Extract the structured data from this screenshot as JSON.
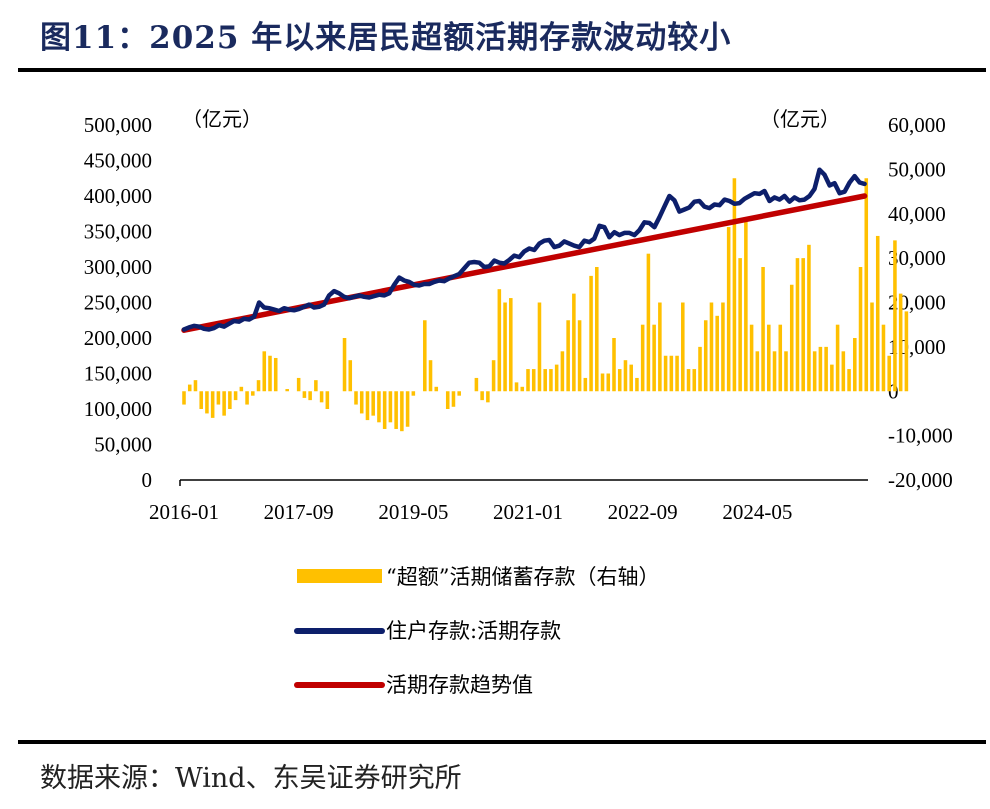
{
  "title": "图11：2025 年以来居民超额活期存款波动较小",
  "source": "数据来源：Wind、东吴证券研究所",
  "chart_data": {
    "type": "bar+line",
    "left_axis": {
      "unit": "（亿元）",
      "range": [
        0,
        500000
      ],
      "ticks": [
        "0",
        "50,000",
        "100,000",
        "150,000",
        "200,000",
        "250,000",
        "300,000",
        "350,000",
        "400,000",
        "450,000",
        "500,000"
      ]
    },
    "right_axis": {
      "unit": "（亿元）",
      "range": [
        -20000,
        60000
      ],
      "ticks": [
        "-20,000",
        "-10,000",
        "0",
        "10,000",
        "20,000",
        "30,000",
        "40,000",
        "50,000",
        "60,000"
      ]
    },
    "x_tick_labels": [
      "2016-01",
      "2017-09",
      "2019-05",
      "2021-01",
      "2022-09",
      "2024-05"
    ],
    "start_month": "2016-01",
    "colors": {
      "bar": "#FFC000",
      "blue": "#0D1F6B",
      "red": "#C00000"
    },
    "series": [
      {
        "name": "“超额”活期储蓄存款（右轴）",
        "axis": "right",
        "kind": "bar",
        "values": [
          -3000,
          1500,
          2500,
          -4000,
          -5000,
          -6000,
          -3000,
          -5500,
          -4000,
          -2000,
          1000,
          -3000,
          -1000,
          2500,
          9000,
          8000,
          7500,
          0,
          500,
          0,
          3000,
          -1500,
          -2000,
          2500,
          -2500,
          -4000,
          0,
          0,
          12000,
          7000,
          -3000,
          -5000,
          -6500,
          -5500,
          -7000,
          -8500,
          -7000,
          -8500,
          -9000,
          -8000,
          -1000,
          0,
          16000,
          7000,
          1000,
          0,
          -4000,
          -3500,
          -1000,
          0,
          0,
          3000,
          -2000,
          -2500,
          7000,
          23000,
          20000,
          21000,
          2000,
          1000,
          5000,
          5000,
          20000,
          5000,
          5000,
          6000,
          9000,
          16000,
          22000,
          16000,
          3000,
          26000,
          28000,
          4000,
          4000,
          12000,
          5000,
          7000,
          6000,
          3000,
          15000,
          31000,
          15000,
          20000,
          8000,
          8000,
          8000,
          20000,
          5000,
          5000,
          10000,
          16000,
          20000,
          17000,
          20000,
          37000,
          48000,
          30000,
          39000,
          15000,
          9000,
          28000,
          15000,
          9000,
          15000,
          9000,
          24000,
          30000,
          30000,
          33000,
          9000,
          10000,
          10000,
          6000,
          15000,
          9000,
          5000,
          12000,
          28000,
          48000,
          20000,
          35000,
          15000,
          8000,
          34000,
          22000,
          18000
        ]
      },
      {
        "name": "住户存款:活期存款",
        "axis": "left",
        "kind": "line",
        "values": [
          212000,
          215000,
          217000,
          216000,
          213000,
          212000,
          214000,
          218000,
          216000,
          220000,
          224000,
          223000,
          227000,
          226000,
          230000,
          250000,
          243000,
          242000,
          240000,
          238000,
          242000,
          240000,
          239000,
          241000,
          244000,
          247000,
          243000,
          244000,
          247000,
          260000,
          266000,
          263000,
          258000,
          256000,
          258000,
          260000,
          258000,
          257000,
          259000,
          261000,
          260000,
          263000,
          275000,
          285000,
          281000,
          279000,
          275000,
          274000,
          276000,
          276000,
          279000,
          281000,
          280000,
          284000,
          287000,
          290000,
          298000,
          306000,
          307000,
          306000,
          300000,
          301000,
          309000,
          306000,
          305000,
          310000,
          316000,
          314000,
          322000,
          326000,
          324000,
          333000,
          337000,
          338000,
          328000,
          330000,
          336000,
          333000,
          330000,
          328000,
          337000,
          335000,
          340000,
          358000,
          356000,
          342000,
          349000,
          345000,
          348000,
          348000,
          345000,
          352000,
          363000,
          362000,
          356000,
          370000,
          385000,
          400000,
          394000,
          378000,
          381000,
          384000,
          392000,
          393000,
          385000,
          383000,
          388000,
          387000,
          395000,
          393000,
          389000,
          390000,
          396000,
          400000,
          404000,
          403000,
          407000,
          393000,
          398000,
          395000,
          400000,
          392000,
          398000,
          394000,
          395000,
          400000,
          410000,
          437000,
          430000,
          415000,
          418000,
          404000,
          406000,
          419000,
          428000,
          419000,
          417000
        ]
      },
      {
        "name": "活期存款趋势值",
        "axis": "left",
        "kind": "line",
        "start_value": 211000,
        "end_value": 400000
      }
    ]
  }
}
